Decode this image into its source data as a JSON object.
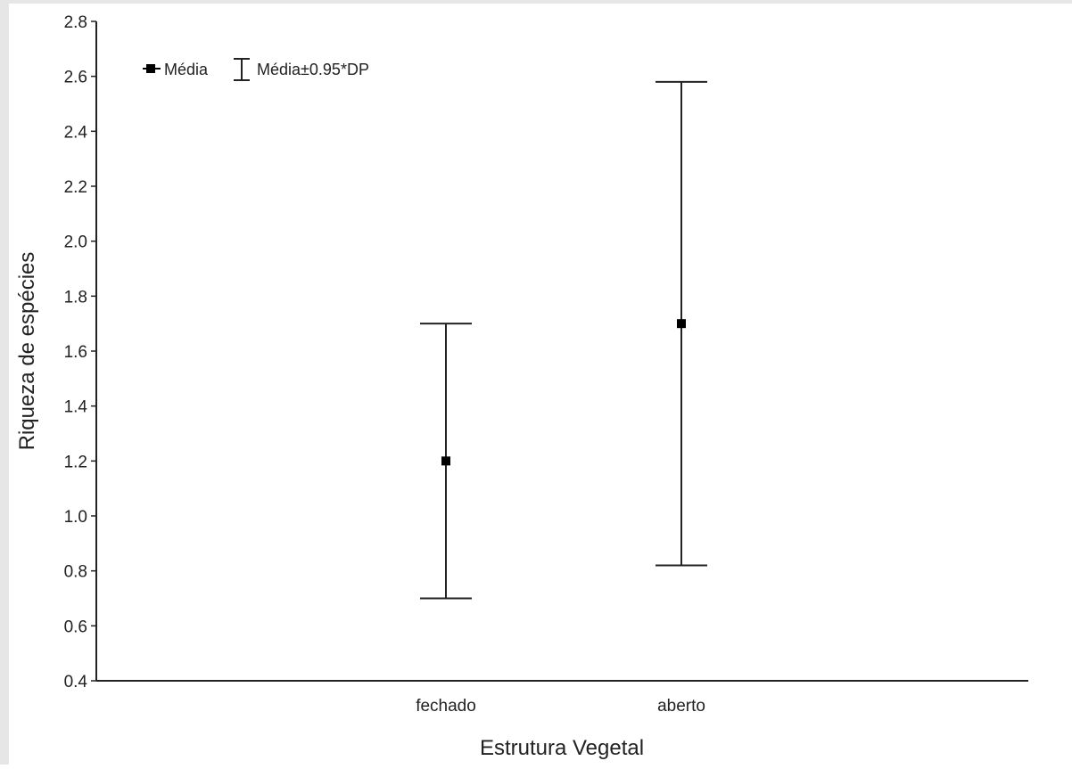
{
  "chart_data": {
    "type": "scatter",
    "title": "",
    "xlabel": "Estrutura Vegetal",
    "ylabel": "Riqueza de espécies",
    "ylim": [
      0.4,
      2.8
    ],
    "yticks": [
      "0.4",
      "0.6",
      "0.8",
      "1.0",
      "1.2",
      "1.4",
      "1.6",
      "1.8",
      "2.0",
      "2.2",
      "2.4",
      "2.6",
      "2.8"
    ],
    "categories": [
      "fechado",
      "aberto"
    ],
    "series": [
      {
        "name": "Média",
        "values": [
          1.2,
          1.7
        ],
        "error_low": [
          0.7,
          0.82
        ],
        "error_high": [
          1.7,
          2.58
        ]
      }
    ],
    "legend": {
      "position": "top-left",
      "mean_label": "Média",
      "error_label": "Média±0.95*DP"
    },
    "grid": false,
    "marker_color": "#000000",
    "line_color": "#222222"
  }
}
